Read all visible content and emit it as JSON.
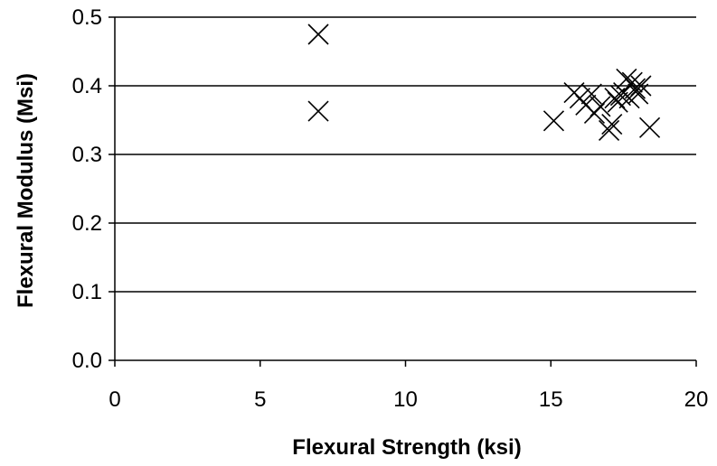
{
  "chart_data": {
    "type": "scatter",
    "title": "",
    "xlabel": "Flexural Strength (ksi)",
    "ylabel": "Flexural Modulus (Msi)",
    "xlim": [
      0,
      20
    ],
    "ylim": [
      0.0,
      0.5
    ],
    "xticks": [
      "0",
      "5",
      "10",
      "15",
      "20"
    ],
    "yticks": [
      "0.0",
      "0.1",
      "0.2",
      "0.3",
      "0.4",
      "0.5"
    ],
    "grid": "horizontal",
    "legend": "none",
    "marker": "x",
    "marker_color": "#000000",
    "series": [
      {
        "points": [
          [
            7.0,
            0.475
          ],
          [
            7.0,
            0.363
          ],
          [
            15.1,
            0.349
          ],
          [
            15.8,
            0.39
          ],
          [
            16.0,
            0.382
          ],
          [
            16.2,
            0.372
          ],
          [
            16.4,
            0.388
          ],
          [
            16.5,
            0.36
          ],
          [
            16.7,
            0.37
          ],
          [
            17.0,
            0.335
          ],
          [
            17.1,
            0.344
          ],
          [
            17.2,
            0.382
          ],
          [
            17.3,
            0.376
          ],
          [
            17.4,
            0.386
          ],
          [
            17.5,
            0.39
          ],
          [
            17.6,
            0.41
          ],
          [
            17.7,
            0.382
          ],
          [
            17.8,
            0.405
          ],
          [
            17.9,
            0.396
          ],
          [
            18.0,
            0.388
          ],
          [
            18.1,
            0.4
          ],
          [
            18.4,
            0.339
          ]
        ]
      }
    ]
  }
}
